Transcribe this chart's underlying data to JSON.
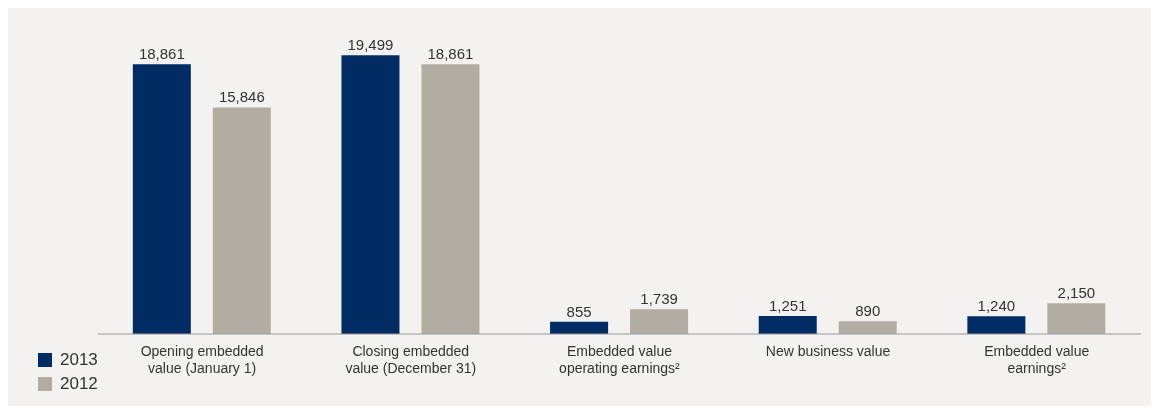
{
  "chart_data": {
    "type": "bar",
    "categories": [
      "Opening embedded value (January 1)",
      "Closing embedded value (December 31)",
      "Embedded value operating earnings²",
      "New business value",
      "Embedded value earnings²"
    ],
    "series": [
      {
        "name": "2013",
        "color": "#002b63",
        "values": [
          18861,
          19499,
          855,
          1251,
          1240
        ],
        "value_labels": [
          "18,861",
          "19,499",
          "855",
          "1,251",
          "1,240"
        ]
      },
      {
        "name": "2012",
        "color": "#b3aca3",
        "values": [
          15846,
          18861,
          1739,
          890,
          2150
        ],
        "value_labels": [
          "15,846",
          "18,861",
          "1,739",
          "890",
          "2,150"
        ]
      }
    ],
    "legend": "bottom left"
  }
}
